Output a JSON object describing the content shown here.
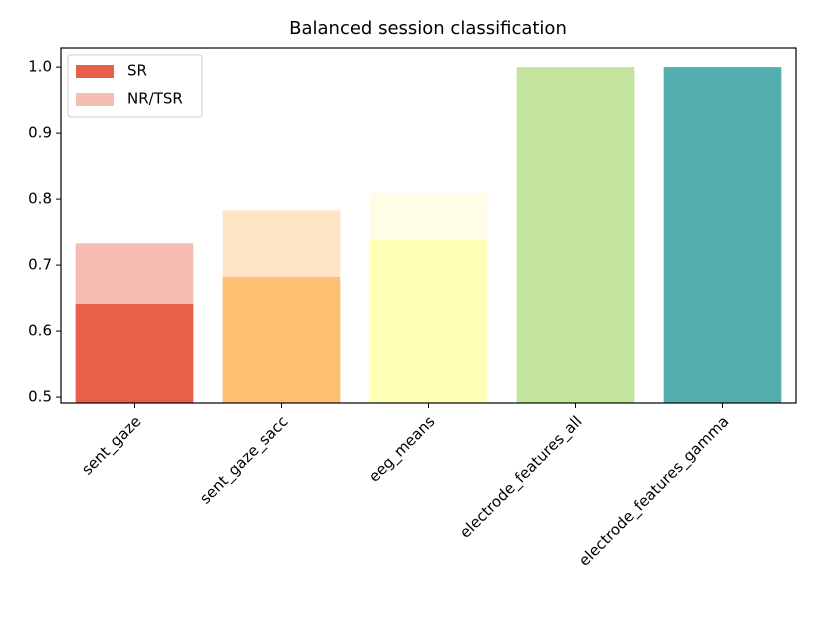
{
  "chart_data": {
    "type": "bar",
    "title": "Balanced session classification",
    "categories": [
      "sent_gaze",
      "sent_gaze_sacc",
      "eeg_means",
      "electrode_features_all",
      "electrode_features_gamma"
    ],
    "series": [
      {
        "name": "NR/TSR",
        "color": "#f5bdb3",
        "colors": [
          "#f5bdb3",
          "#fee3c5",
          "#fffde6",
          "#e5f3d7",
          "#bbdede"
        ],
        "values": [
          0.733,
          0.783,
          0.809,
          1.0,
          1.0
        ]
      },
      {
        "name": "SR",
        "color": "#e8604a",
        "colors": [
          "#e8604a",
          "#fdbf71",
          "#ffffb6",
          "#c2e49e",
          "#55aeae"
        ],
        "values": [
          0.641,
          0.682,
          0.739,
          1.0,
          1.0
        ]
      }
    ],
    "ylim": [
      0.491,
      1.029
    ],
    "yticks": [
      0.5,
      0.6,
      0.7,
      0.8,
      0.9,
      {
        "value": 1,
        "label": "1.0"
      }
    ],
    "legend": "upper left"
  }
}
